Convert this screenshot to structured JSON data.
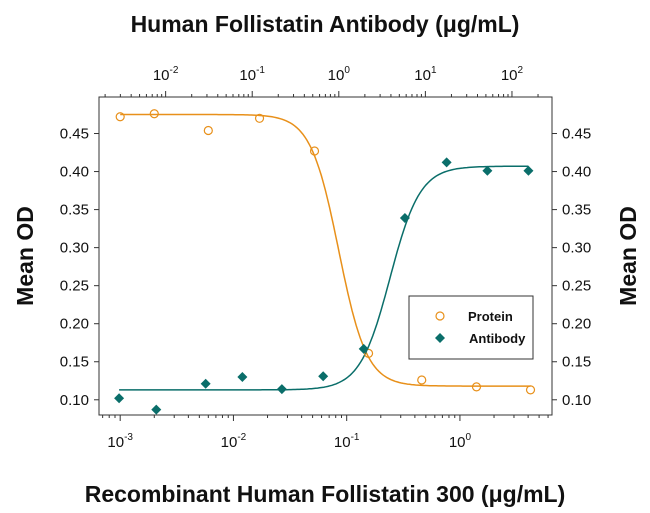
{
  "chart_data": {
    "type": "scatter",
    "top_title": "Human Follistatin Antibody (μg/mL)",
    "xlabel": "Recombinant Human Follistatin 300 (μg/mL)",
    "ylabel_left": "Mean OD",
    "ylabel_right": "Mean OD",
    "x_scale": "log",
    "x_bottom_ticks": [
      {
        "exp": "-3",
        "value": 0.001
      },
      {
        "exp": "-2",
        "value": 0.01
      },
      {
        "exp": "-1",
        "value": 0.1
      },
      {
        "exp": "0",
        "value": 1
      }
    ],
    "x_top_ticks": [
      {
        "exp": "-2",
        "value": 0.01
      },
      {
        "exp": "-1",
        "value": 0.1
      },
      {
        "exp": "0",
        "value": 1
      },
      {
        "exp": "1",
        "value": 10
      },
      {
        "exp": "2",
        "value": 100
      }
    ],
    "x_bottom_range": [
      0.00065,
      6.5
    ],
    "x_top_range": [
      0.0017,
      290
    ],
    "ylim": [
      0.08,
      0.498
    ],
    "y_ticks": [
      "0.10",
      "0.15",
      "0.20",
      "0.25",
      "0.30",
      "0.35",
      "0.40",
      "0.45"
    ],
    "legend_position": "lower-right",
    "grid": false,
    "series": [
      {
        "name": "Protein",
        "axis": "bottom",
        "marker": "open-circle",
        "color": "#e8901a",
        "x": [
          0.001,
          0.002,
          0.006,
          0.017,
          0.052,
          0.156,
          0.46,
          1.4,
          4.2
        ],
        "y": [
          0.472,
          0.476,
          0.454,
          0.47,
          0.427,
          0.161,
          0.126,
          0.117,
          0.113
        ],
        "fit": {
          "top": 0.475,
          "bottom": 0.118,
          "ec50": 0.085,
          "hill": -3.5
        }
      },
      {
        "name": "Antibody",
        "axis": "top",
        "marker": "filled-diamond",
        "color": "#0a6e6a",
        "x": [
          0.0029,
          0.0078,
          0.029,
          0.077,
          0.22,
          0.66,
          1.94,
          5.8,
          17.6,
          52,
          155
        ],
        "y": [
          0.102,
          0.087,
          0.121,
          0.13,
          0.114,
          0.131,
          0.167,
          0.339,
          0.412,
          0.401,
          0.401
        ],
        "fit": {
          "top": 0.407,
          "bottom": 0.113,
          "ec50": 3.9,
          "hill": 2.5
        }
      }
    ]
  }
}
